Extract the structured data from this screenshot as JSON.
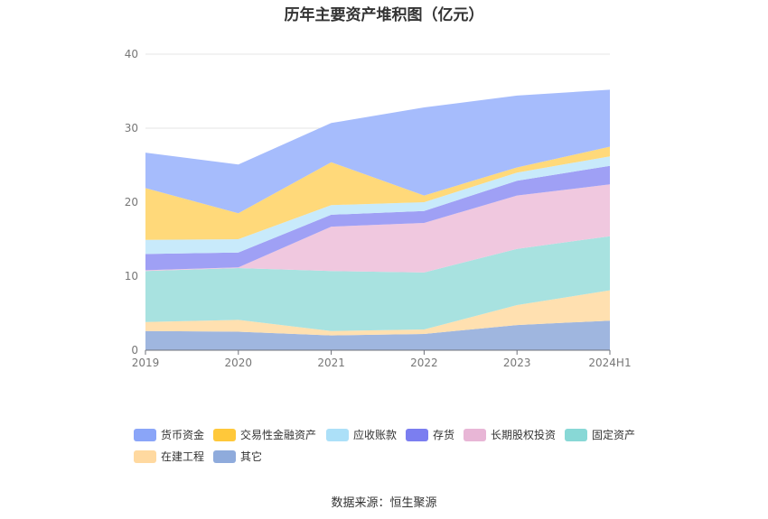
{
  "chart_data": {
    "type": "area",
    "title": "历年主要资产堆积图（亿元）",
    "categories": [
      "2019",
      "2020",
      "2021",
      "2022",
      "2023",
      "2024H1"
    ],
    "ylim": [
      0,
      40
    ],
    "yticks": [
      0,
      10,
      20,
      30,
      40
    ],
    "grid": true,
    "legend_position": "bottom",
    "series": [
      {
        "name": "其它",
        "color": "#9fb6df",
        "values": [
          2.6,
          2.5,
          2.0,
          2.2,
          3.4,
          4.0
        ]
      },
      {
        "name": "在建工程",
        "color": "#ffe0b0",
        "values": [
          1.2,
          1.6,
          0.6,
          0.6,
          2.7,
          4.1
        ]
      },
      {
        "name": "固定资产",
        "color": "#a8e2e0",
        "values": [
          6.9,
          7.0,
          8.1,
          7.7,
          7.6,
          7.3
        ]
      },
      {
        "name": "长期股权投资",
        "color": "#f0c8df",
        "values": [
          0.1,
          0.1,
          6.0,
          6.7,
          7.2,
          7.0
        ]
      },
      {
        "name": "存货",
        "color": "#9fa0f5",
        "values": [
          2.2,
          2.0,
          1.6,
          1.6,
          2.0,
          2.5
        ]
      },
      {
        "name": "应收账款",
        "color": "#c8eafb",
        "values": [
          1.9,
          1.8,
          1.3,
          1.2,
          1.1,
          1.3
        ]
      },
      {
        "name": "交易性金融资产",
        "color": "#ffd97a",
        "values": [
          7.0,
          3.5,
          5.8,
          0.9,
          0.7,
          1.3
        ]
      },
      {
        "name": "货币资金",
        "color": "#a6bcfc",
        "values": [
          4.8,
          6.6,
          5.3,
          11.9,
          9.7,
          7.7
        ]
      }
    ]
  },
  "legend": [
    {
      "label": "货币资金",
      "color": "#8aa5f8"
    },
    {
      "label": "交易性金融资产",
      "color": "#ffc83a"
    },
    {
      "label": "应收账款",
      "color": "#ace0f8"
    },
    {
      "label": "存货",
      "color": "#7b7ef0"
    },
    {
      "label": "长期股权投资",
      "color": "#e8b6d6"
    },
    {
      "label": "固定资产",
      "color": "#88d8d6"
    },
    {
      "label": "在建工程",
      "color": "#ffd9a0"
    },
    {
      "label": "其它",
      "color": "#8fabdc"
    }
  ],
  "source": "数据来源：恒生聚源"
}
